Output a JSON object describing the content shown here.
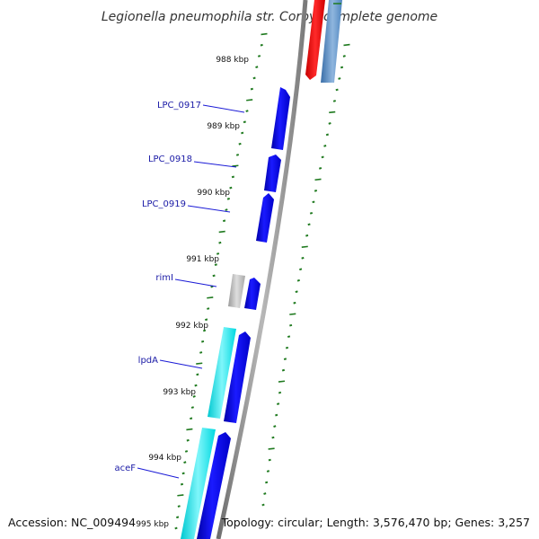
{
  "title": "Legionella pneumophila str. Corby, complete genome",
  "footer": {
    "accession": "Accession: NC_009494",
    "summary": "Topology: circular; Length: 3,576,470 bp; Genes: 3,257"
  },
  "colors": {
    "backbone": "#8a8a8a",
    "tick": "#1f7a1f",
    "label_line": "#1a1ad6",
    "forward_gene": "#0000e6",
    "cds_cyan": "#00e0e8",
    "rna_gray": "#b0b0b0",
    "red_feature": "#ee0000",
    "steel_feature": "#4f86c0"
  },
  "ticks": [
    {
      "label": "988 kbp"
    },
    {
      "label": "989 kbp"
    },
    {
      "label": "990 kbp"
    },
    {
      "label": "991 kbp"
    },
    {
      "label": "992 kbp"
    },
    {
      "label": "993 kbp"
    },
    {
      "label": "994 kbp"
    },
    {
      "label": "995 kbp"
    }
  ],
  "gene_labels": [
    {
      "name": "LPC_0917"
    },
    {
      "name": "LPC_0918"
    },
    {
      "name": "LPC_0919"
    },
    {
      "name": "rimI"
    },
    {
      "name": "lpdA"
    },
    {
      "name": "aceF"
    }
  ]
}
